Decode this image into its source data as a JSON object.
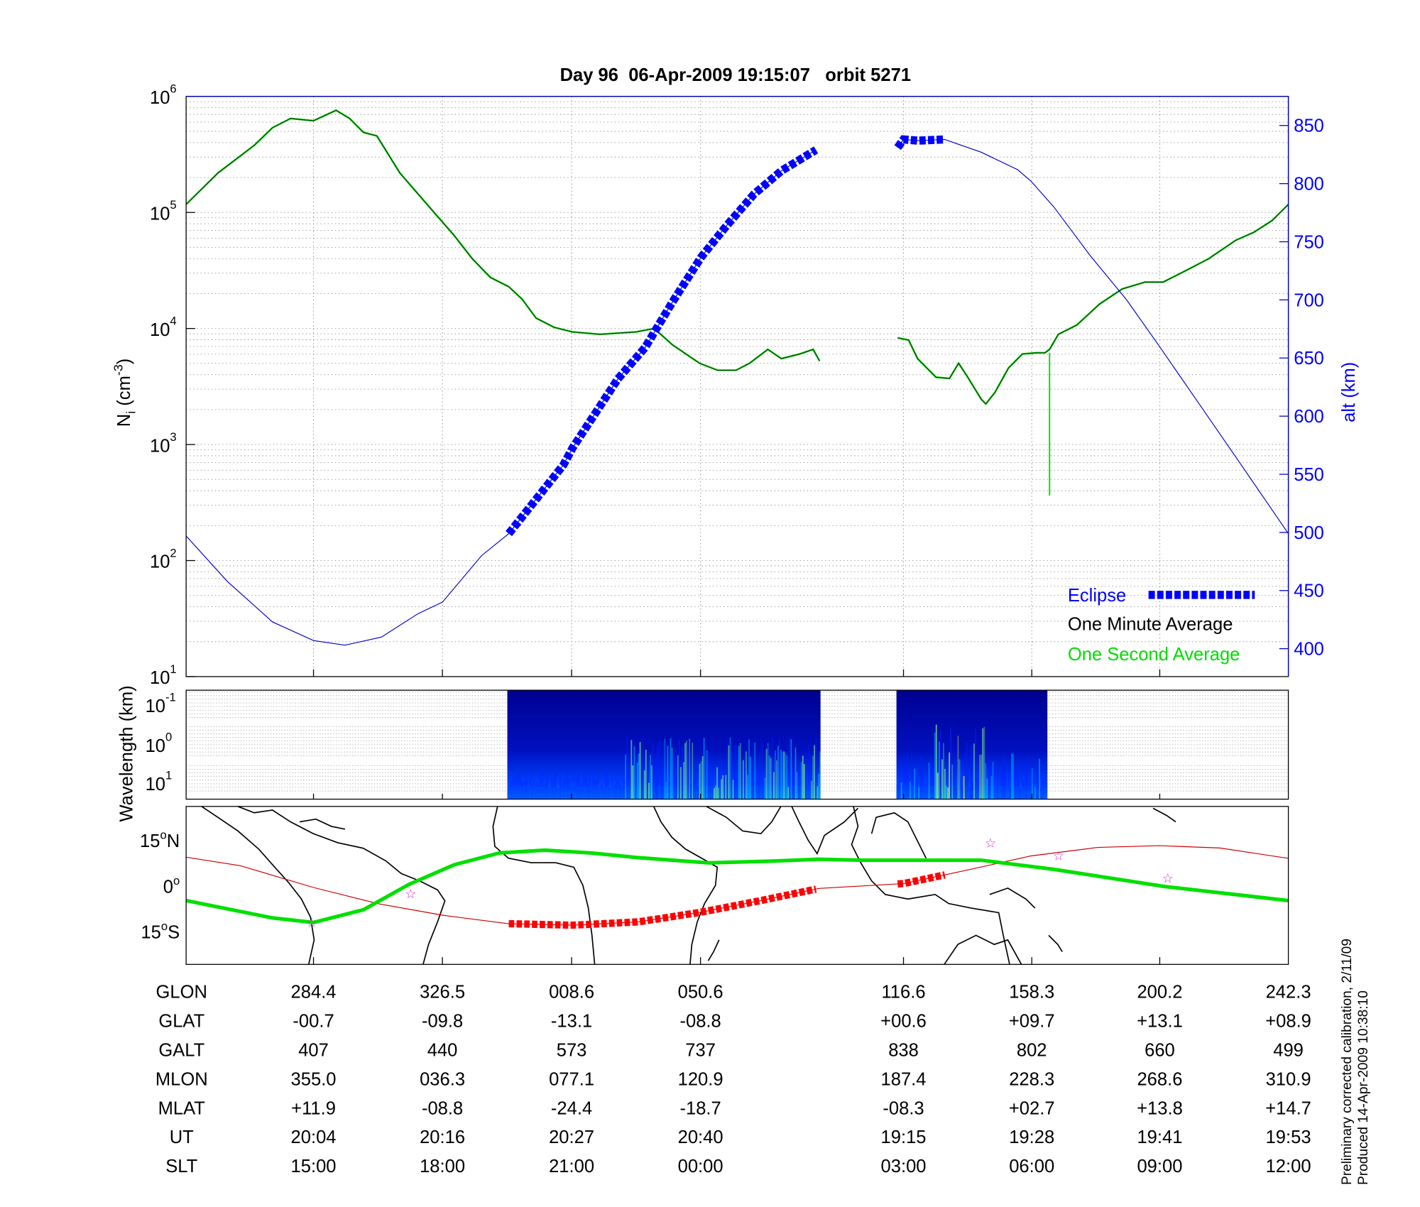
{
  "chart_data": [
    {
      "type": "line",
      "title": "Day 96  06-Apr-2009 19:15:07   orbit 5271",
      "xlabel": "",
      "x_units": "GLON (deg, unwrapped)",
      "xlim": [
        242.3,
        602.3
      ],
      "ylabel": "N",
      "ylabel_sub": "i",
      "ylabel_unit_pre": " (cm",
      "ylabel_unit_sup": "-3",
      "ylabel_unit_post": ")",
      "yscale": "log",
      "ylim_log10": [
        1,
        6
      ],
      "y_ticks": [
        {
          "base": "10",
          "exp": "1"
        },
        {
          "base": "10",
          "exp": "2"
        },
        {
          "base": "10",
          "exp": "3"
        },
        {
          "base": "10",
          "exp": "4"
        },
        {
          "base": "10",
          "exp": "5"
        },
        {
          "base": "10",
          "exp": "6"
        }
      ],
      "y2label": "alt (km)",
      "y2lim": [
        376,
        875
      ],
      "y2_ticks": [
        "400",
        "450",
        "500",
        "550",
        "600",
        "650",
        "700",
        "750",
        "800",
        "850"
      ],
      "grid": true,
      "legend_position": "bottom-right",
      "legend": {
        "eclipse": "Eclipse",
        "minute": "One Minute Average",
        "second": "One Second Average"
      },
      "colors": {
        "eclipse": "#0000ff",
        "alt": "#0000cc",
        "minute": "#1a3a1a",
        "second": "#00dd00"
      },
      "series": [
        {
          "name": "One Minute Average",
          "unit": "log10 cm^-3",
          "segments": [
            [
              [
                242.3,
                5.07
              ],
              [
                252.7,
                5.34
              ],
              [
                264.6,
                5.58
              ],
              [
                270.5,
                5.73
              ],
              [
                276.4,
                5.81
              ],
              [
                283.9,
                5.79
              ],
              [
                291.3,
                5.88
              ],
              [
                295.7,
                5.81
              ],
              [
                300.2,
                5.69
              ],
              [
                304.6,
                5.66
              ],
              [
                312.1,
                5.34
              ],
              [
                321.0,
                5.07
              ],
              [
                329.9,
                4.8
              ],
              [
                335.8,
                4.6
              ],
              [
                341.7,
                4.44
              ],
              [
                347.7,
                4.36
              ],
              [
                352.1,
                4.25
              ],
              [
                356.6,
                4.09
              ],
              [
                362.5,
                4.01
              ],
              [
                368.5,
                3.97
              ],
              [
                377.4,
                3.95
              ],
              [
                389.2,
                3.97
              ],
              [
                395.2,
                4.0
              ],
              [
                401.1,
                3.86
              ],
              [
                410.0,
                3.7
              ],
              [
                415.9,
                3.64
              ],
              [
                421.9,
                3.64
              ],
              [
                426.3,
                3.7
              ],
              [
                432.3,
                3.82
              ],
              [
                436.7,
                3.74
              ],
              [
                442.7,
                3.78
              ],
              [
                447.1,
                3.82
              ],
              [
                449.2,
                3.72
              ]
            ],
            [
              [
                474.7,
                3.92
              ],
              [
                478.3,
                3.9
              ],
              [
                481.2,
                3.74
              ],
              [
                487.2,
                3.58
              ],
              [
                491.6,
                3.57
              ],
              [
                494.6,
                3.7
              ],
              [
                497.6,
                3.58
              ],
              [
                502.0,
                3.39
              ],
              [
                503.5,
                3.35
              ],
              [
                506.5,
                3.45
              ],
              [
                510.9,
                3.66
              ],
              [
                515.4,
                3.78
              ],
              [
                519.8,
                3.79
              ],
              [
                522.8,
                3.79
              ],
              [
                524.3,
                3.82
              ],
              [
                527.2,
                3.95
              ],
              [
                533.2,
                4.03
              ],
              [
                540.6,
                4.21
              ],
              [
                548.0,
                4.34
              ],
              [
                555.5,
                4.4
              ],
              [
                561.4,
                4.4
              ],
              [
                567.4,
                4.48
              ],
              [
                576.2,
                4.6
              ],
              [
                585.1,
                4.76
              ],
              [
                591.1,
                4.83
              ],
              [
                597.0,
                4.93
              ],
              [
                602.3,
                5.07
              ]
            ]
          ]
        },
        {
          "name": "One Second Average",
          "unit": "log10 cm^-3",
          "spike": {
            "x": 524.3,
            "min_log10": 2.56
          }
        },
        {
          "name": "alt",
          "unit": "km",
          "segments": [
            [
              [
                242.3,
                497
              ],
              [
                255.7,
                458
              ],
              [
                270.5,
                423
              ],
              [
                283.9,
                407
              ],
              [
                294.2,
                403
              ],
              [
                306.1,
                410
              ],
              [
                318.0,
                430
              ],
              [
                326.0,
                440
              ],
              [
                338.8,
                480
              ],
              [
                347.7,
                499
              ],
              [
                365.5,
                558
              ],
              [
                368.6,
                573
              ],
              [
                383.3,
                632
              ],
              [
                392.2,
                659
              ],
              [
                401.1,
                698
              ],
              [
                410.6,
                737
              ],
              [
                418.9,
                764
              ],
              [
                427.8,
                791
              ],
              [
                436.7,
                811
              ],
              [
                448.0,
                829
              ]
            ],
            [
              [
                474.7,
                831
              ],
              [
                476.6,
                838
              ],
              [
                481.2,
                837
              ],
              [
                490.1,
                838
              ],
              [
                502.0,
                827
              ],
              [
                513.9,
                812
              ],
              [
                518.3,
                802
              ],
              [
                525.7,
                780
              ],
              [
                537.6,
                738
              ],
              [
                549.5,
                700
              ],
              [
                560.2,
                660
              ],
              [
                573.3,
                610
              ],
              [
                585.1,
                565
              ],
              [
                602.3,
                499
              ]
            ]
          ]
        },
        {
          "name": "Eclipse",
          "ranges": [
            [
              347.7,
              448.0
            ],
            [
              474.7,
              490.1
            ]
          ]
        }
      ]
    },
    {
      "type": "heatmap",
      "ylabel": "Wavelength (km)",
      "y_ticks": [
        {
          "base": "10",
          "exp": "-1"
        },
        {
          "base": "10",
          "exp": "0"
        },
        {
          "base": "10",
          "exp": "1"
        }
      ],
      "data_ranges": [
        [
          347.2,
          449.5
        ],
        [
          474.3,
          523.6
        ]
      ],
      "colormap": [
        "#00008f",
        "#0020ff",
        "#00c0ff",
        "#80ff80",
        "#e0ff20"
      ]
    },
    {
      "type": "line",
      "name": "ground-track map",
      "y_ticks": [
        {
          "value": "15",
          "deg": "o",
          "hemi": "N"
        },
        {
          "value": "0",
          "deg": "o",
          "hemi": ""
        },
        {
          "value": "15",
          "deg": "o",
          "hemi": "S"
        }
      ],
      "ylim": [
        -26,
        26
      ],
      "series": [
        {
          "name": "satellite track",
          "color": "#cc0000",
          "points": [
            [
              242.3,
              9.3
            ],
            [
              260,
              6.5
            ],
            [
              283.9,
              -0.7
            ],
            [
              305,
              -6
            ],
            [
              326.0,
              -9.8
            ],
            [
              347.7,
              -12.6
            ],
            [
              368.6,
              -13.1
            ],
            [
              390,
              -12.0
            ],
            [
              410.6,
              -8.8
            ],
            [
              430,
              -5.0
            ],
            [
              449,
              -1.0
            ],
            [
              476.6,
              0.6
            ],
            [
              495,
              4.5
            ],
            [
              518.3,
              9.7
            ],
            [
              540,
              12.5
            ],
            [
              560.2,
              13.1
            ],
            [
              580,
              12.3
            ],
            [
              602.3,
              8.9
            ]
          ]
        },
        {
          "name": "dip equator",
          "color": "#00e000",
          "points": [
            [
              242.3,
              -5.0
            ],
            [
              270.5,
              -10.7
            ],
            [
              283.9,
              -12.2
            ],
            [
              300.2,
              -8.0
            ],
            [
              315,
              0.3
            ],
            [
              329.9,
              6.8
            ],
            [
              344.7,
              10.7
            ],
            [
              359.5,
              11.6
            ],
            [
              374.4,
              10.7
            ],
            [
              389.2,
              9.2
            ],
            [
              412.9,
              7.4
            ],
            [
              433.7,
              8.0
            ],
            [
              448.5,
              8.6
            ],
            [
              463.4,
              8.3
            ],
            [
              478.3,
              8.3
            ],
            [
              502.0,
              8.3
            ],
            [
              525.7,
              5.3
            ],
            [
              561.4,
              -0.3
            ],
            [
              602.3,
              -5.0
            ]
          ]
        }
      ],
      "stars": [
        [
          283.3,
          -12.2
        ],
        [
          315.6,
          -2.7
        ],
        [
          505.0,
          14.0
        ],
        [
          527.2,
          9.8
        ],
        [
          562.9,
          2.4
        ]
      ]
    }
  ],
  "table": {
    "rows": [
      {
        "label": "GLON",
        "values": [
          "284.4",
          "326.5",
          "008.6",
          "050.6",
          "116.6",
          "158.3",
          "200.2",
          "242.3"
        ]
      },
      {
        "label": "GLAT",
        "values": [
          "-00.7",
          "-09.8",
          "-13.1",
          "-08.8",
          "+00.6",
          "+09.7",
          "+13.1",
          "+08.9"
        ]
      },
      {
        "label": "GALT",
        "values": [
          "407",
          "440",
          "573",
          "737",
          "838",
          "802",
          "660",
          "499"
        ]
      },
      {
        "label": "MLON",
        "values": [
          "355.0",
          "036.3",
          "077.1",
          "120.9",
          "187.4",
          "228.3",
          "268.6",
          "310.9"
        ]
      },
      {
        "label": "MLAT",
        "values": [
          "+11.9",
          "-08.8",
          "-24.4",
          "-18.7",
          "-08.3",
          "+02.7",
          "+13.8",
          "+14.7"
        ]
      },
      {
        "label": "UT",
        "values": [
          "20:04",
          "20:16",
          "20:27",
          "20:40",
          "19:15",
          "19:28",
          "19:41",
          "19:53"
        ]
      },
      {
        "label": "SLT",
        "values": [
          "15:00",
          "18:00",
          "21:00",
          "00:00",
          "03:00",
          "06:00",
          "09:00",
          "12:00"
        ]
      }
    ],
    "column_glon": [
      283.9,
      326.0,
      368.2,
      410.3,
      476.6,
      518.5,
      560.3,
      602.3
    ]
  },
  "footer": {
    "line1": "Preliminary corrected calibration, 2/11/09",
    "line2": "Produced 14-Apr-2009 10:38:10"
  }
}
